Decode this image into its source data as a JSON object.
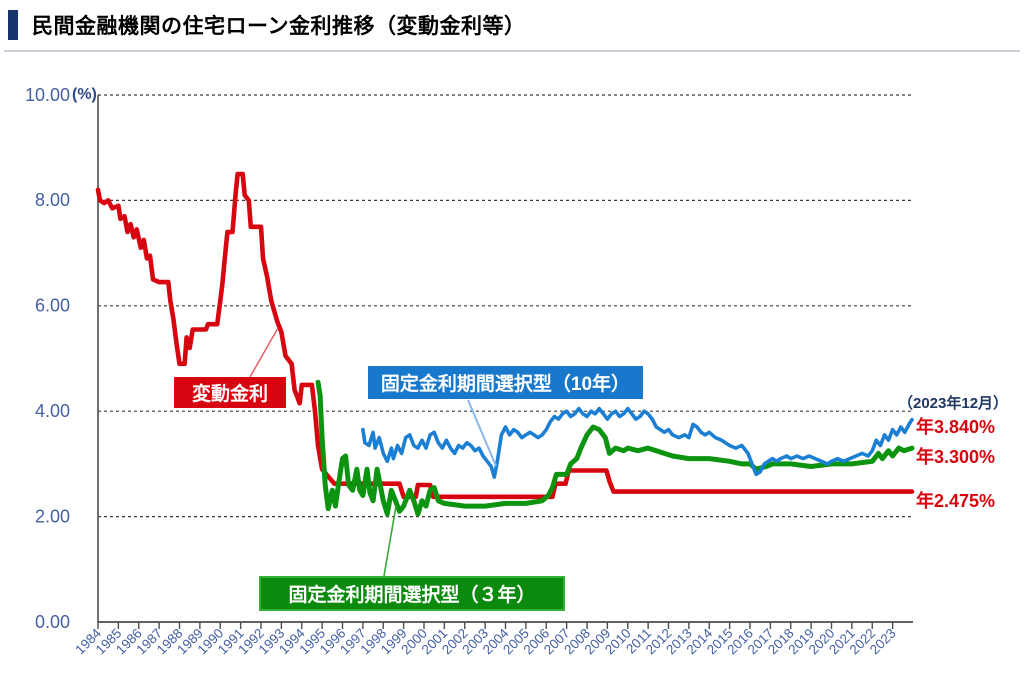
{
  "header": {
    "title": "民間金融機関の住宅ローン金利推移（変動金利等）",
    "accent_color": "#17356d"
  },
  "chart_data": {
    "type": "line",
    "title": "民間金融機関の住宅ローン金利推移（変動金利等）",
    "unit_label": "(%)",
    "ylabel": "",
    "xlabel": "",
    "ylim": [
      0,
      10
    ],
    "grid": "dashed horizontal",
    "legend_position": "inline boxed labels with leader lines",
    "annotation_date": "（2023年12月）",
    "yticks": {
      "values": [
        10,
        8,
        6,
        4,
        2,
        0
      ],
      "labels": [
        "10.00",
        "8.00",
        "6.00",
        "4.00",
        "2.00",
        "0.00"
      ]
    },
    "x_years": [
      1984,
      1985,
      1986,
      1987,
      1988,
      1989,
      1990,
      1991,
      1992,
      1993,
      1994,
      1995,
      1996,
      1997,
      1998,
      1999,
      2000,
      2001,
      2002,
      2003,
      2004,
      2005,
      2006,
      2007,
      2008,
      2009,
      2010,
      2011,
      2012,
      2013,
      2014,
      2015,
      2016,
      2017,
      2018,
      2019,
      2020,
      2021,
      2022,
      2023
    ],
    "series": [
      {
        "name": "変動金利",
        "color": "#d7050f",
        "final_label": "年2.475%",
        "final_value": 2.475,
        "points": [
          [
            1984.0,
            8.2
          ],
          [
            1984.1,
            8.0
          ],
          [
            1984.3,
            7.95
          ],
          [
            1984.5,
            8.0
          ],
          [
            1984.7,
            7.85
          ],
          [
            1985.0,
            7.9
          ],
          [
            1985.1,
            7.65
          ],
          [
            1985.3,
            7.7
          ],
          [
            1985.45,
            7.4
          ],
          [
            1985.6,
            7.55
          ],
          [
            1985.75,
            7.3
          ],
          [
            1985.9,
            7.45
          ],
          [
            1986.1,
            7.1
          ],
          [
            1986.25,
            7.25
          ],
          [
            1986.4,
            6.9
          ],
          [
            1986.55,
            6.95
          ],
          [
            1986.7,
            6.5
          ],
          [
            1987.0,
            6.45
          ],
          [
            1987.45,
            6.45
          ],
          [
            1987.55,
            6.1
          ],
          [
            1987.7,
            5.75
          ],
          [
            1987.85,
            5.3
          ],
          [
            1988.0,
            4.9
          ],
          [
            1988.25,
            4.9
          ],
          [
            1988.35,
            5.4
          ],
          [
            1988.5,
            5.2
          ],
          [
            1988.65,
            5.55
          ],
          [
            1989.3,
            5.55
          ],
          [
            1989.4,
            5.65
          ],
          [
            1989.85,
            5.65
          ],
          [
            1990.0,
            6.1
          ],
          [
            1990.1,
            6.4
          ],
          [
            1990.25,
            7.0
          ],
          [
            1990.35,
            7.4
          ],
          [
            1990.6,
            7.4
          ],
          [
            1990.75,
            8.1
          ],
          [
            1990.85,
            8.5
          ],
          [
            1991.1,
            8.5
          ],
          [
            1991.2,
            8.1
          ],
          [
            1991.4,
            8.0
          ],
          [
            1991.5,
            7.5
          ],
          [
            1992.0,
            7.5
          ],
          [
            1992.1,
            6.9
          ],
          [
            1992.3,
            6.55
          ],
          [
            1992.5,
            6.1
          ],
          [
            1992.8,
            5.7
          ],
          [
            1993.0,
            5.5
          ],
          [
            1993.2,
            5.05
          ],
          [
            1993.5,
            4.9
          ],
          [
            1993.65,
            4.4
          ],
          [
            1993.8,
            4.25
          ],
          [
            1993.9,
            4.15
          ],
          [
            1994.0,
            4.5
          ],
          [
            1994.5,
            4.5
          ],
          [
            1994.65,
            4.0
          ],
          [
            1994.8,
            3.35
          ],
          [
            1995.0,
            2.9
          ],
          [
            1995.6,
            2.625
          ],
          [
            1998.8,
            2.625
          ],
          [
            1999.0,
            2.375
          ],
          [
            1999.6,
            2.375
          ],
          [
            1999.7,
            2.6
          ],
          [
            2000.3,
            2.6
          ],
          [
            2000.45,
            2.375
          ],
          [
            2006.3,
            2.375
          ],
          [
            2006.45,
            2.625
          ],
          [
            2006.95,
            2.625
          ],
          [
            2007.1,
            2.875
          ],
          [
            2008.95,
            2.875
          ],
          [
            2009.1,
            2.675
          ],
          [
            2009.3,
            2.475
          ],
          [
            2023.95,
            2.475
          ]
        ]
      },
      {
        "name": "固定金利期間選択型（３年）",
        "color": "#0c9310",
        "final_label": "年3.300%",
        "final_value": 3.3,
        "points": [
          [
            1994.8,
            4.55
          ],
          [
            1994.9,
            4.3
          ],
          [
            1995.0,
            3.5
          ],
          [
            1995.15,
            2.6
          ],
          [
            1995.3,
            2.15
          ],
          [
            1995.5,
            2.5
          ],
          [
            1995.65,
            2.2
          ],
          [
            1995.8,
            2.6
          ],
          [
            1996.0,
            3.1
          ],
          [
            1996.15,
            3.15
          ],
          [
            1996.3,
            2.6
          ],
          [
            1996.5,
            2.5
          ],
          [
            1996.7,
            2.9
          ],
          [
            1996.85,
            2.5
          ],
          [
            1997.0,
            2.4
          ],
          [
            1997.2,
            2.9
          ],
          [
            1997.35,
            2.45
          ],
          [
            1997.5,
            2.3
          ],
          [
            1997.7,
            2.9
          ],
          [
            1997.85,
            2.6
          ],
          [
            1998.0,
            2.3
          ],
          [
            1998.2,
            2.05
          ],
          [
            1998.4,
            2.5
          ],
          [
            1998.6,
            2.3
          ],
          [
            1998.8,
            2.1
          ],
          [
            1999.0,
            2.2
          ],
          [
            1999.3,
            2.5
          ],
          [
            1999.5,
            2.3
          ],
          [
            1999.7,
            2.05
          ],
          [
            1999.9,
            2.3
          ],
          [
            2000.1,
            2.2
          ],
          [
            2000.3,
            2.5
          ],
          [
            2000.5,
            2.55
          ],
          [
            2000.7,
            2.3
          ],
          [
            2001.0,
            2.25
          ],
          [
            2002.0,
            2.2
          ],
          [
            2003.0,
            2.2
          ],
          [
            2004.0,
            2.25
          ],
          [
            2005.0,
            2.25
          ],
          [
            2005.8,
            2.3
          ],
          [
            2006.1,
            2.4
          ],
          [
            2006.3,
            2.55
          ],
          [
            2006.5,
            2.8
          ],
          [
            2007.0,
            2.8
          ],
          [
            2007.2,
            3.0
          ],
          [
            2007.5,
            3.1
          ],
          [
            2007.7,
            3.3
          ],
          [
            2008.0,
            3.55
          ],
          [
            2008.3,
            3.7
          ],
          [
            2008.6,
            3.65
          ],
          [
            2008.9,
            3.5
          ],
          [
            2009.1,
            3.2
          ],
          [
            2009.4,
            3.3
          ],
          [
            2009.8,
            3.25
          ],
          [
            2010.0,
            3.3
          ],
          [
            2010.5,
            3.25
          ],
          [
            2011.0,
            3.3
          ],
          [
            2011.4,
            3.25
          ],
          [
            2011.8,
            3.2
          ],
          [
            2012.2,
            3.15
          ],
          [
            2013.0,
            3.1
          ],
          [
            2014.0,
            3.1
          ],
          [
            2015.0,
            3.05
          ],
          [
            2015.6,
            3.0
          ],
          [
            2016.0,
            3.0
          ],
          [
            2016.3,
            2.9
          ],
          [
            2016.8,
            2.95
          ],
          [
            2017.1,
            3.0
          ],
          [
            2018.0,
            3.0
          ],
          [
            2019.0,
            2.95
          ],
          [
            2020.0,
            3.0
          ],
          [
            2021.0,
            3.0
          ],
          [
            2022.0,
            3.05
          ],
          [
            2022.3,
            3.2
          ],
          [
            2022.5,
            3.1
          ],
          [
            2022.8,
            3.25
          ],
          [
            2023.0,
            3.15
          ],
          [
            2023.3,
            3.3
          ],
          [
            2023.55,
            3.25
          ],
          [
            2023.95,
            3.3
          ]
        ]
      },
      {
        "name": "固定金利期間選択型（10年）",
        "color": "#1b7fd4",
        "final_label": "年3.840%",
        "final_value": 3.84,
        "points": [
          [
            1997.0,
            3.65
          ],
          [
            1997.1,
            3.4
          ],
          [
            1997.3,
            3.35
          ],
          [
            1997.5,
            3.6
          ],
          [
            1997.6,
            3.3
          ],
          [
            1997.8,
            3.5
          ],
          [
            1998.0,
            3.2
          ],
          [
            1998.2,
            3.05
          ],
          [
            1998.4,
            3.3
          ],
          [
            1998.5,
            3.1
          ],
          [
            1998.7,
            3.35
          ],
          [
            1998.9,
            3.2
          ],
          [
            1999.1,
            3.5
          ],
          [
            1999.3,
            3.55
          ],
          [
            1999.5,
            3.35
          ],
          [
            1999.7,
            3.3
          ],
          [
            1999.9,
            3.45
          ],
          [
            2000.1,
            3.3
          ],
          [
            2000.3,
            3.55
          ],
          [
            2000.5,
            3.6
          ],
          [
            2000.7,
            3.4
          ],
          [
            2000.9,
            3.3
          ],
          [
            2001.1,
            3.45
          ],
          [
            2001.3,
            3.3
          ],
          [
            2001.5,
            3.2
          ],
          [
            2001.7,
            3.35
          ],
          [
            2001.9,
            3.3
          ],
          [
            2002.1,
            3.4
          ],
          [
            2002.3,
            3.35
          ],
          [
            2002.5,
            3.25
          ],
          [
            2002.7,
            3.3
          ],
          [
            2002.9,
            3.15
          ],
          [
            2003.1,
            3.05
          ],
          [
            2003.3,
            2.95
          ],
          [
            2003.45,
            2.75
          ],
          [
            2003.6,
            3.05
          ],
          [
            2003.8,
            3.55
          ],
          [
            2004.0,
            3.7
          ],
          [
            2004.2,
            3.55
          ],
          [
            2004.4,
            3.65
          ],
          [
            2004.6,
            3.6
          ],
          [
            2004.8,
            3.5
          ],
          [
            2005.0,
            3.55
          ],
          [
            2005.2,
            3.6
          ],
          [
            2005.4,
            3.55
          ],
          [
            2005.6,
            3.5
          ],
          [
            2005.8,
            3.55
          ],
          [
            2006.0,
            3.65
          ],
          [
            2006.2,
            3.8
          ],
          [
            2006.4,
            3.9
          ],
          [
            2006.6,
            3.85
          ],
          [
            2006.8,
            3.95
          ],
          [
            2007.0,
            4.0
          ],
          [
            2007.2,
            3.9
          ],
          [
            2007.4,
            3.95
          ],
          [
            2007.6,
            4.05
          ],
          [
            2007.8,
            3.95
          ],
          [
            2008.0,
            3.9
          ],
          [
            2008.2,
            4.0
          ],
          [
            2008.4,
            3.95
          ],
          [
            2008.6,
            4.05
          ],
          [
            2008.8,
            3.95
          ],
          [
            2009.0,
            3.85
          ],
          [
            2009.2,
            3.95
          ],
          [
            2009.4,
            4.0
          ],
          [
            2009.6,
            3.9
          ],
          [
            2009.8,
            3.95
          ],
          [
            2010.0,
            4.05
          ],
          [
            2010.2,
            3.95
          ],
          [
            2010.4,
            3.85
          ],
          [
            2010.6,
            3.9
          ],
          [
            2010.8,
            4.0
          ],
          [
            2011.0,
            3.95
          ],
          [
            2011.2,
            3.85
          ],
          [
            2011.4,
            3.7
          ],
          [
            2011.6,
            3.65
          ],
          [
            2011.8,
            3.6
          ],
          [
            2012.0,
            3.65
          ],
          [
            2012.2,
            3.55
          ],
          [
            2012.5,
            3.5
          ],
          [
            2012.8,
            3.55
          ],
          [
            2013.0,
            3.5
          ],
          [
            2013.2,
            3.75
          ],
          [
            2013.4,
            3.7
          ],
          [
            2013.6,
            3.6
          ],
          [
            2013.8,
            3.55
          ],
          [
            2014.0,
            3.6
          ],
          [
            2014.3,
            3.5
          ],
          [
            2014.6,
            3.45
          ],
          [
            2015.0,
            3.35
          ],
          [
            2015.3,
            3.3
          ],
          [
            2015.6,
            3.35
          ],
          [
            2015.9,
            3.2
          ],
          [
            2016.1,
            3.0
          ],
          [
            2016.3,
            2.8
          ],
          [
            2016.5,
            2.85
          ],
          [
            2016.7,
            3.0
          ],
          [
            2016.9,
            3.05
          ],
          [
            2017.1,
            3.1
          ],
          [
            2017.3,
            3.05
          ],
          [
            2017.5,
            3.1
          ],
          [
            2017.8,
            3.15
          ],
          [
            2018.0,
            3.1
          ],
          [
            2018.3,
            3.15
          ],
          [
            2018.6,
            3.1
          ],
          [
            2018.9,
            3.15
          ],
          [
            2019.2,
            3.1
          ],
          [
            2019.5,
            3.05
          ],
          [
            2019.8,
            3.0
          ],
          [
            2020.0,
            3.05
          ],
          [
            2020.3,
            3.1
          ],
          [
            2020.6,
            3.05
          ],
          [
            2020.9,
            3.1
          ],
          [
            2021.2,
            3.15
          ],
          [
            2021.5,
            3.2
          ],
          [
            2021.8,
            3.15
          ],
          [
            2022.0,
            3.25
          ],
          [
            2022.2,
            3.45
          ],
          [
            2022.4,
            3.35
          ],
          [
            2022.6,
            3.55
          ],
          [
            2022.8,
            3.45
          ],
          [
            2023.0,
            3.65
          ],
          [
            2023.2,
            3.55
          ],
          [
            2023.4,
            3.7
          ],
          [
            2023.6,
            3.6
          ],
          [
            2023.8,
            3.75
          ],
          [
            2023.95,
            3.84
          ]
        ]
      }
    ],
    "axis_colors": {
      "tick_label": "#4560a4",
      "gridline": "#3a3a3a",
      "axis_line": "#4d4d4d"
    }
  }
}
